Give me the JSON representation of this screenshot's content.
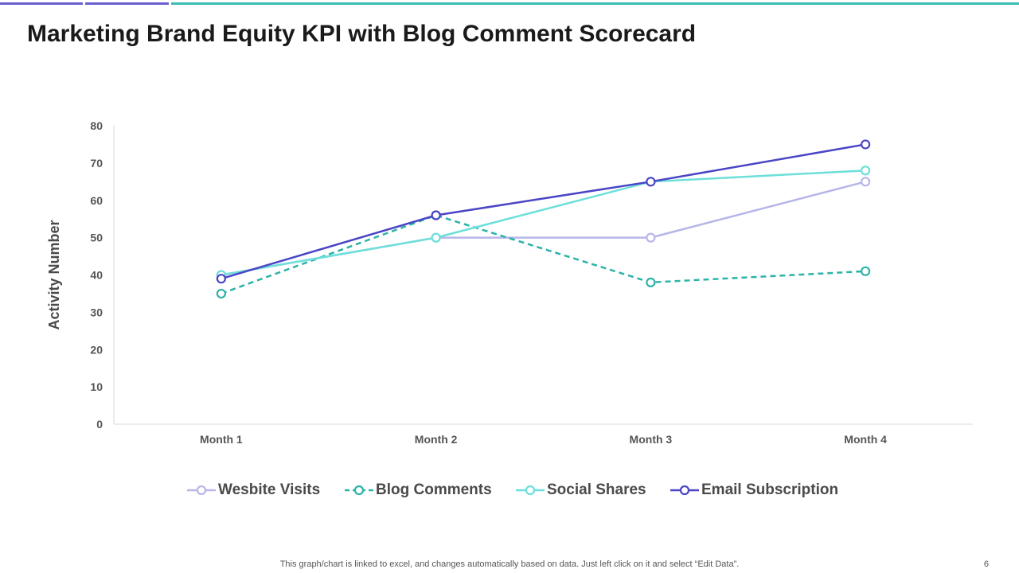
{
  "header": {
    "title": "Marketing Brand Equity KPI with Blog Comment Scorecard",
    "accent_colors": [
      "#6b5fd0",
      "#6b5fd0",
      "#3bbdb5"
    ]
  },
  "chart_data": {
    "type": "line",
    "categories": [
      "Month 1",
      "Month 2",
      "Month 3",
      "Month 4"
    ],
    "ylabel": "Activity Number",
    "xlabel": "",
    "ylim": [
      0,
      80
    ],
    "yticks": [
      "0",
      "10",
      "20",
      "30",
      "40",
      "50",
      "60",
      "70",
      "80"
    ],
    "grid": false,
    "legend_position": "bottom",
    "series": [
      {
        "name": "Wesbite Visits",
        "values": [
          40,
          50,
          50,
          65
        ],
        "color": "#b6b6e8",
        "dashed": false
      },
      {
        "name": "Blog Comments",
        "values": [
          35,
          56,
          38,
          41
        ],
        "color": "#2bb3a8",
        "dashed": true
      },
      {
        "name": "Social Shares",
        "values": [
          40,
          50,
          65,
          68
        ],
        "color": "#6ddfda",
        "dashed": false
      },
      {
        "name": "Email Subscription",
        "values": [
          39,
          56,
          65,
          75
        ],
        "color": "#4b45c6",
        "dashed": false
      }
    ]
  },
  "footer": {
    "note": "This graph/chart is linked to excel,  and changes automatically based on data. Just left click on it and select “Edit Data”.",
    "page_number": "6"
  }
}
